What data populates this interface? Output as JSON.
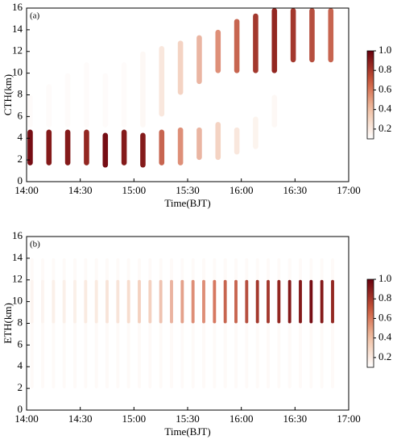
{
  "chart_data": [
    {
      "type": "heatmap",
      "label": "(a)",
      "xlabel": "Time(BJT)",
      "ylabel": "CTH(km)",
      "xlim": [
        0,
        180
      ],
      "xticks": [
        {
          "value": 0,
          "label": "14:00"
        },
        {
          "value": 30,
          "label": "14:30"
        },
        {
          "value": 60,
          "label": "15:00"
        },
        {
          "value": 90,
          "label": "15:30"
        },
        {
          "value": 120,
          "label": "16:00"
        },
        {
          "value": 150,
          "label": "16:30"
        },
        {
          "value": 180,
          "label": "17:00"
        }
      ],
      "ylim": [
        0,
        16
      ],
      "yticks": [
        0,
        2,
        4,
        6,
        8,
        10,
        12,
        14,
        16
      ],
      "clim": [
        0.1,
        1
      ],
      "cticks": [
        0.2,
        0.4,
        0.6,
        0.8,
        {
          "value": 1,
          "label": "1.0"
        }
      ],
      "columns": [
        {
          "x": 2,
          "segments": [
            [
              1.5,
              4.8,
              0.95
            ],
            [
              5,
              8,
              0.1
            ]
          ]
        },
        {
          "x": 12.5,
          "segments": [
            [
              1.5,
              4.8,
              0.9
            ],
            [
              5,
              9,
              0.1
            ]
          ]
        },
        {
          "x": 23,
          "segments": [
            [
              1.5,
              4.8,
              0.9
            ],
            [
              5,
              10,
              0.1
            ]
          ]
        },
        {
          "x": 33.5,
          "segments": [
            [
              1.5,
              4.8,
              0.85
            ],
            [
              5,
              11,
              0.1
            ]
          ]
        },
        {
          "x": 44,
          "segments": [
            [
              1.3,
              4.5,
              0.95
            ],
            [
              5,
              10,
              0.1
            ]
          ]
        },
        {
          "x": 54.5,
          "segments": [
            [
              1.5,
              4.8,
              0.9
            ],
            [
              5,
              11,
              0.1
            ]
          ]
        },
        {
          "x": 65,
          "segments": [
            [
              1.3,
              4.5,
              0.9
            ],
            [
              5,
              12,
              0.15
            ]
          ]
        },
        {
          "x": 75.5,
          "segments": [
            [
              1.5,
              4.8,
              0.7
            ],
            [
              6,
              12.5,
              0.3
            ]
          ]
        },
        {
          "x": 86,
          "segments": [
            [
              1.5,
              5,
              0.6
            ],
            [
              8,
              13,
              0.4
            ]
          ]
        },
        {
          "x": 96.5,
          "segments": [
            [
              2,
              5,
              0.5
            ],
            [
              9,
              13.5,
              0.5
            ]
          ]
        },
        {
          "x": 107,
          "segments": [
            [
              2,
              5.5,
              0.4
            ],
            [
              10,
              14,
              0.6
            ]
          ]
        },
        {
          "x": 117.5,
          "segments": [
            [
              2.5,
              5,
              0.3
            ],
            [
              10,
              15,
              0.7
            ]
          ]
        },
        {
          "x": 128,
          "segments": [
            [
              3,
              6,
              0.2
            ],
            [
              10,
              15.5,
              0.8
            ]
          ]
        },
        {
          "x": 138.5,
          "segments": [
            [
              5,
              8,
              0.15
            ],
            [
              10,
              16,
              0.85
            ]
          ]
        },
        {
          "x": 149,
          "segments": [
            [
              11,
              16,
              0.8
            ]
          ]
        },
        {
          "x": 159.5,
          "segments": [
            [
              11,
              16,
              0.75
            ]
          ]
        },
        {
          "x": 170,
          "segments": [
            [
              11,
              16,
              0.7
            ]
          ]
        }
      ]
    },
    {
      "type": "heatmap",
      "label": "(b)",
      "xlabel": "Time(BJT)",
      "ylabel": "ETH(km)",
      "xlim": [
        0,
        180
      ],
      "xticks": [
        {
          "value": 0,
          "label": "14:00"
        },
        {
          "value": 30,
          "label": "14:30"
        },
        {
          "value": 60,
          "label": "15:00"
        },
        {
          "value": 90,
          "label": "15:30"
        },
        {
          "value": 120,
          "label": "16:00"
        },
        {
          "value": 150,
          "label": "16:30"
        },
        {
          "value": 180,
          "label": "17:00"
        }
      ],
      "ylim": [
        0,
        16
      ],
      "yticks": [
        0,
        2,
        4,
        6,
        8,
        10,
        12,
        14,
        16
      ],
      "clim": [
        0.1,
        1
      ],
      "cticks": [
        0.2,
        0.4,
        0.6,
        0.8,
        {
          "value": 1,
          "label": "1.0"
        }
      ],
      "columns": [
        {
          "x": 3,
          "segments": [
            [
              2,
              14,
              0.12
            ],
            [
              8,
              12,
              0.15
            ]
          ]
        },
        {
          "x": 9,
          "segments": [
            [
              2,
              14,
              0.12
            ],
            [
              8,
              12,
              0.15
            ]
          ]
        },
        {
          "x": 15,
          "segments": [
            [
              2,
              14,
              0.12
            ],
            [
              8,
              12,
              0.2
            ]
          ]
        },
        {
          "x": 21,
          "segments": [
            [
              2,
              14,
              0.12
            ],
            [
              8,
              12,
              0.2
            ]
          ]
        },
        {
          "x": 27,
          "segments": [
            [
              2,
              14,
              0.12
            ],
            [
              8,
              12,
              0.2
            ]
          ]
        },
        {
          "x": 33,
          "segments": [
            [
              2,
              14,
              0.12
            ],
            [
              8,
              12,
              0.25
            ]
          ]
        },
        {
          "x": 39,
          "segments": [
            [
              2,
              14,
              0.12
            ],
            [
              8,
              12,
              0.25
            ]
          ]
        },
        {
          "x": 45,
          "segments": [
            [
              2,
              14,
              0.12
            ],
            [
              8,
              12,
              0.3
            ]
          ]
        },
        {
          "x": 51,
          "segments": [
            [
              2,
              14,
              0.12
            ],
            [
              8,
              12,
              0.3
            ]
          ]
        },
        {
          "x": 57,
          "segments": [
            [
              2,
              14,
              0.12
            ],
            [
              8,
              12,
              0.35
            ]
          ]
        },
        {
          "x": 63,
          "segments": [
            [
              2,
              14,
              0.12
            ],
            [
              8,
              12,
              0.4
            ]
          ]
        },
        {
          "x": 69,
          "segments": [
            [
              2,
              14,
              0.12
            ],
            [
              8,
              12,
              0.4
            ]
          ]
        },
        {
          "x": 75,
          "segments": [
            [
              2,
              14,
              0.12
            ],
            [
              8,
              12,
              0.45
            ]
          ]
        },
        {
          "x": 81,
          "segments": [
            [
              2,
              14,
              0.12
            ],
            [
              8,
              12,
              0.5
            ]
          ]
        },
        {
          "x": 87,
          "segments": [
            [
              2,
              14,
              0.12
            ],
            [
              8,
              12,
              0.55
            ]
          ]
        },
        {
          "x": 93,
          "segments": [
            [
              2,
              14,
              0.12
            ],
            [
              8,
              12,
              0.6
            ]
          ]
        },
        {
          "x": 99,
          "segments": [
            [
              2,
              14,
              0.12
            ],
            [
              8,
              12,
              0.6
            ]
          ]
        },
        {
          "x": 105,
          "segments": [
            [
              2,
              14,
              0.12
            ],
            [
              8,
              12,
              0.65
            ]
          ]
        },
        {
          "x": 111,
          "segments": [
            [
              2,
              14,
              0.12
            ],
            [
              8,
              12,
              0.7
            ]
          ]
        },
        {
          "x": 117,
          "segments": [
            [
              2,
              14,
              0.12
            ],
            [
              8,
              12,
              0.7
            ]
          ]
        },
        {
          "x": 123,
          "segments": [
            [
              2,
              14,
              0.12
            ],
            [
              8,
              12,
              0.75
            ]
          ]
        },
        {
          "x": 129,
          "segments": [
            [
              2,
              14,
              0.12
            ],
            [
              8,
              12,
              0.8
            ]
          ]
        },
        {
          "x": 135,
          "segments": [
            [
              2,
              14,
              0.12
            ],
            [
              8,
              12,
              0.8
            ]
          ]
        },
        {
          "x": 141,
          "segments": [
            [
              2,
              14,
              0.12
            ],
            [
              8,
              12,
              0.85
            ]
          ]
        },
        {
          "x": 147,
          "segments": [
            [
              2,
              14,
              0.12
            ],
            [
              8,
              12,
              0.9
            ]
          ]
        },
        {
          "x": 153,
          "segments": [
            [
              2,
              14,
              0.12
            ],
            [
              8,
              12,
              0.9
            ]
          ]
        },
        {
          "x": 159,
          "segments": [
            [
              2,
              14,
              0.12
            ],
            [
              8,
              12,
              0.95
            ]
          ]
        },
        {
          "x": 165,
          "segments": [
            [
              2,
              14,
              0.12
            ],
            [
              8,
              12,
              0.9
            ]
          ]
        },
        {
          "x": 171,
          "segments": [
            [
              2,
              14,
              0.12
            ],
            [
              8,
              12,
              0.85
            ]
          ]
        }
      ]
    }
  ]
}
